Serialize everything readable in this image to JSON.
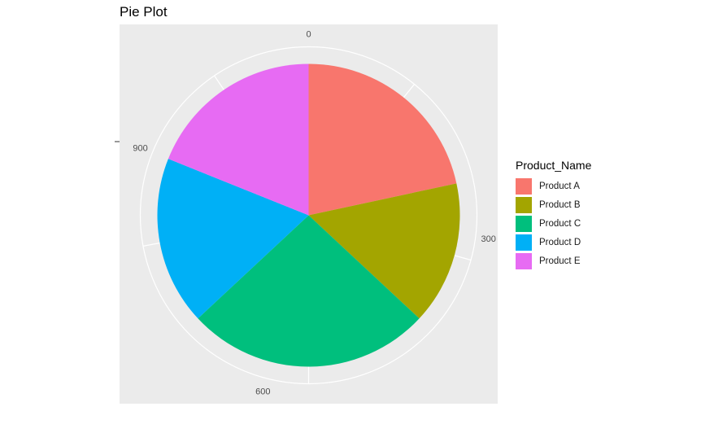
{
  "chart_data": {
    "type": "pie",
    "title": "Pie Plot",
    "legend_title": "Product_Name",
    "legend_position": "right",
    "categories": [
      "Product A",
      "Product B",
      "Product C",
      "Product D",
      "Product E"
    ],
    "values": [
      240,
      170,
      290,
      200,
      210
    ],
    "colors": [
      "#F8766D",
      "#A3A500",
      "#00BF7D",
      "#00B0F6",
      "#E76BF3"
    ],
    "theta_axis": {
      "ticks": [
        0,
        300,
        600,
        900
      ],
      "tick_labels": [
        "0",
        "300",
        "600",
        "900"
      ]
    },
    "ylabel_tick": "-",
    "panel_background": "#EBEBEB",
    "grid": true
  }
}
